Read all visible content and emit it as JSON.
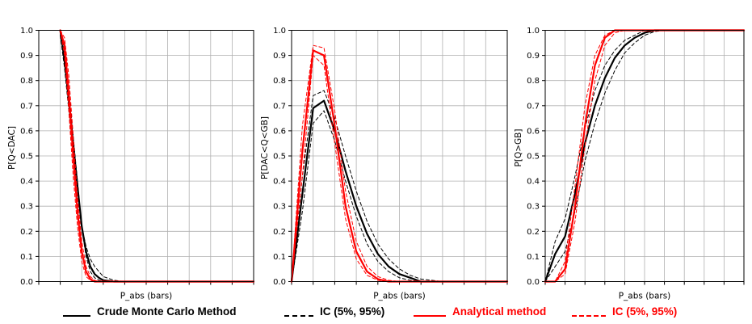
{
  "chart_data": [
    {
      "type": "line",
      "title": "",
      "xlabel": "P_abs (bars)",
      "ylabel": "P[Q<DAC]",
      "ylim": [
        0,
        1
      ],
      "yticks": [
        "0.0",
        "0.1",
        "0.2",
        "0.3",
        "0.4",
        "0.5",
        "0.6",
        "0.7",
        "0.8",
        "0.9",
        "1.0"
      ],
      "xlim": [
        0,
        10
      ],
      "grid": true,
      "x": [
        0,
        1,
        1.2,
        1.4,
        1.6,
        1.8,
        2.0,
        2.2,
        2.4,
        2.6,
        2.8,
        3.0,
        3.5,
        4,
        5,
        6,
        7,
        8,
        9,
        10
      ],
      "series": [
        {
          "style": "black-solid",
          "values": [
            null,
            1.0,
            0.88,
            0.72,
            0.55,
            0.38,
            0.22,
            0.12,
            0.06,
            0.03,
            0.015,
            0.005,
            0.0,
            0.0,
            0.0,
            0.0,
            0.0,
            0.0,
            0.0,
            0.0
          ]
        },
        {
          "style": "black-dashed",
          "values": [
            null,
            0.98,
            0.85,
            0.68,
            0.5,
            0.36,
            0.22,
            0.14,
            0.09,
            0.06,
            0.04,
            0.02,
            0.005,
            0.0,
            0.0,
            0.0,
            0.0,
            0.0,
            0.0,
            0.0
          ]
        },
        {
          "style": "black-dashed",
          "values": [
            null,
            1.0,
            0.92,
            0.76,
            0.58,
            0.4,
            0.22,
            0.1,
            0.04,
            0.015,
            0.005,
            0.0,
            0.0,
            0.0,
            0.0,
            0.0,
            0.0,
            0.0,
            0.0,
            0.0
          ]
        },
        {
          "style": "red-solid",
          "values": [
            null,
            1.0,
            0.94,
            0.75,
            0.5,
            0.28,
            0.12,
            0.04,
            0.01,
            0.0,
            0.0,
            0.0,
            0.0,
            0.0,
            0.0,
            0.0,
            0.0,
            0.0,
            0.0,
            0.0
          ]
        },
        {
          "style": "red-dashed",
          "values": [
            null,
            1.0,
            0.9,
            0.68,
            0.42,
            0.22,
            0.08,
            0.02,
            0.005,
            0.0,
            0.0,
            0.0,
            0.0,
            0.0,
            0.0,
            0.0,
            0.0,
            0.0,
            0.0,
            0.0
          ]
        },
        {
          "style": "red-dashed",
          "values": [
            null,
            1.0,
            0.97,
            0.82,
            0.58,
            0.34,
            0.16,
            0.06,
            0.02,
            0.005,
            0.0,
            0.0,
            0.0,
            0.0,
            0.0,
            0.0,
            0.0,
            0.0,
            0.0,
            0.0
          ]
        }
      ]
    },
    {
      "type": "line",
      "title": "",
      "xlabel": "P_abs (bars)",
      "ylabel": "P[DAC<Q<GB]",
      "ylim": [
        0,
        1
      ],
      "yticks": [
        "0.0",
        "0.1",
        "0.2",
        "0.3",
        "0.4",
        "0.5",
        "0.6",
        "0.7",
        "0.8",
        "0.9",
        "1.0"
      ],
      "xlim": [
        0,
        10
      ],
      "grid": true,
      "x": [
        0,
        0.5,
        1.0,
        1.5,
        2.0,
        2.5,
        3.0,
        3.5,
        4.0,
        4.5,
        5.0,
        5.5,
        6.0,
        7.0,
        8.0,
        9.0,
        10.0
      ],
      "series": [
        {
          "style": "black-solid",
          "values": [
            0.0,
            0.35,
            0.69,
            0.72,
            0.6,
            0.44,
            0.3,
            0.19,
            0.11,
            0.06,
            0.03,
            0.015,
            0.0,
            0.0,
            0.0,
            0.0,
            0.0
          ]
        },
        {
          "style": "black-dashed",
          "values": [
            0.0,
            0.28,
            0.63,
            0.68,
            0.56,
            0.4,
            0.26,
            0.15,
            0.08,
            0.04,
            0.015,
            0.005,
            0.0,
            0.0,
            0.0,
            0.0,
            0.0
          ]
        },
        {
          "style": "black-dashed",
          "values": [
            0.0,
            0.42,
            0.74,
            0.76,
            0.65,
            0.5,
            0.36,
            0.24,
            0.15,
            0.09,
            0.05,
            0.025,
            0.01,
            0.0,
            0.0,
            0.0,
            0.0
          ]
        },
        {
          "style": "red-solid",
          "values": [
            0.0,
            0.52,
            0.92,
            0.9,
            0.62,
            0.3,
            0.12,
            0.04,
            0.01,
            0.0,
            0.0,
            0.0,
            0.0,
            0.0,
            0.0,
            0.0,
            0.0
          ]
        },
        {
          "style": "red-dashed",
          "values": [
            0.0,
            0.42,
            0.9,
            0.86,
            0.55,
            0.25,
            0.09,
            0.025,
            0.005,
            0.0,
            0.0,
            0.0,
            0.0,
            0.0,
            0.0,
            0.0,
            0.0
          ]
        },
        {
          "style": "red-dashed",
          "values": [
            0.0,
            0.62,
            0.94,
            0.93,
            0.68,
            0.36,
            0.16,
            0.06,
            0.02,
            0.005,
            0.0,
            0.0,
            0.0,
            0.0,
            0.0,
            0.0,
            0.0
          ]
        }
      ]
    },
    {
      "type": "line",
      "title": "",
      "xlabel": "P_abs (bars)",
      "ylabel": "P[Q>GB]",
      "ylim": [
        0,
        1
      ],
      "yticks": [
        "0.0",
        "0.1",
        "0.2",
        "0.3",
        "0.4",
        "0.5",
        "0.6",
        "0.7",
        "0.8",
        "0.9",
        "1.0"
      ],
      "xlim": [
        0,
        10
      ],
      "grid": true,
      "x": [
        0,
        0.5,
        1.0,
        1.5,
        2.0,
        2.5,
        3.0,
        3.5,
        4.0,
        4.5,
        5.0,
        5.5,
        6.0,
        7.0,
        8.0,
        9.0,
        10.0
      ],
      "series": [
        {
          "style": "black-solid",
          "values": [
            0.0,
            0.11,
            0.18,
            0.35,
            0.55,
            0.7,
            0.81,
            0.89,
            0.94,
            0.97,
            0.99,
            1.0,
            1.0,
            1.0,
            1.0,
            1.0,
            1.0
          ]
        },
        {
          "style": "black-dashed",
          "values": [
            0.0,
            0.16,
            0.25,
            0.42,
            0.61,
            0.76,
            0.86,
            0.92,
            0.96,
            0.98,
            1.0,
            1.0,
            1.0,
            1.0,
            1.0,
            1.0,
            1.0
          ]
        },
        {
          "style": "black-dashed",
          "values": [
            0.0,
            0.06,
            0.12,
            0.28,
            0.48,
            0.63,
            0.75,
            0.84,
            0.91,
            0.95,
            0.98,
            0.995,
            1.0,
            1.0,
            1.0,
            1.0,
            1.0
          ]
        },
        {
          "style": "red-solid",
          "values": [
            0.0,
            0.0,
            0.05,
            0.3,
            0.62,
            0.86,
            0.97,
            1.0,
            1.0,
            1.0,
            1.0,
            1.0,
            1.0,
            1.0,
            1.0,
            1.0,
            1.0
          ]
        },
        {
          "style": "red-dashed",
          "values": [
            0.0,
            0.0,
            0.08,
            0.38,
            0.7,
            0.9,
            0.98,
            1.0,
            1.0,
            1.0,
            1.0,
            1.0,
            1.0,
            1.0,
            1.0,
            1.0,
            1.0
          ]
        },
        {
          "style": "red-dashed",
          "values": [
            0.0,
            0.0,
            0.03,
            0.24,
            0.54,
            0.8,
            0.94,
            0.99,
            1.0,
            1.0,
            1.0,
            1.0,
            1.0,
            1.0,
            1.0,
            1.0,
            1.0
          ]
        }
      ]
    }
  ],
  "legend": {
    "items": [
      {
        "label": "Crude Monte Carlo Method",
        "color": "#000000",
        "style": "solid"
      },
      {
        "label": "IC (5%, 95%)",
        "color": "#000000",
        "style": "dashed"
      },
      {
        "label": "Analytical method",
        "color": "#ff0000",
        "style": "solid"
      },
      {
        "label": "IC (5%, 95%)",
        "color": "#ff0000",
        "style": "dashed"
      }
    ]
  },
  "colors": {
    "black": "#000000",
    "red": "#ff0000",
    "grid": "#b0b0b0",
    "axis": "#000000"
  }
}
